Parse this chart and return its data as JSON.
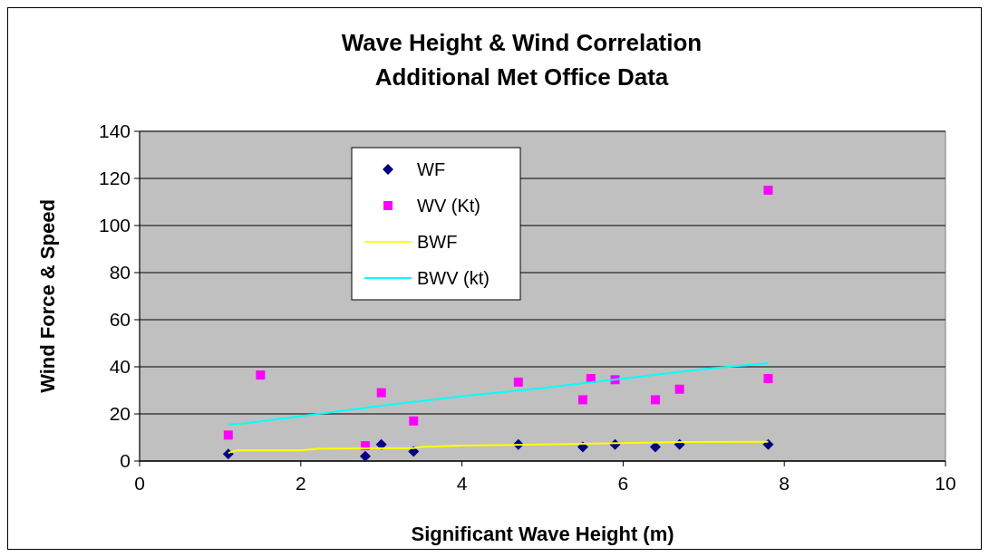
{
  "chart_data": {
    "type": "scatter",
    "title": "Wave Height & Wind Correlation",
    "subtitle": "Additional Met Office Data",
    "xlabel": "Significant Wave Height (m)",
    "ylabel": "Wind Force & Speed",
    "xlim": [
      0,
      10
    ],
    "xticks": [
      0,
      2,
      4,
      6,
      8,
      10
    ],
    "ylim": [
      0,
      140
    ],
    "yticks": [
      0,
      20,
      40,
      60,
      80,
      100,
      120,
      140
    ],
    "grid": "y",
    "legend": "top left",
    "series": [
      {
        "name": "WF",
        "color": "#000080",
        "marker": "diamond",
        "x": [
          1.1,
          2.8,
          3.0,
          3.4,
          4.7,
          5.5,
          5.9,
          6.4,
          6.7,
          7.8
        ],
        "values": [
          3,
          2,
          7,
          4,
          7,
          6,
          7,
          6,
          7,
          7
        ]
      },
      {
        "name": "WV (Kt)",
        "color": "#ff00ff",
        "marker": "square",
        "x": [
          1.1,
          1.5,
          2.8,
          3.0,
          3.4,
          4.7,
          5.5,
          5.6,
          5.9,
          6.4,
          6.7,
          7.8,
          7.8
        ],
        "values": [
          11,
          36.5,
          6.5,
          29,
          17,
          33.5,
          26,
          35,
          34.5,
          26,
          30.5,
          115,
          35
        ]
      },
      {
        "name": "BWF",
        "type": "line",
        "color": "#ffff00",
        "marker": "none",
        "x": [
          1.1,
          1.2,
          2.0,
          2.2,
          3.4,
          3.5,
          4.0,
          5.0,
          6.6,
          7.8
        ],
        "values": [
          3.4,
          4.5,
          4.5,
          5.2,
          5.5,
          6,
          6.5,
          7,
          8,
          8.2
        ]
      },
      {
        "name": "BWV (kt)",
        "type": "line",
        "color": "#00ffff",
        "marker": "none",
        "x": [
          1.1,
          1.3,
          2.0,
          3.0,
          4.0,
          5.0,
          6.0,
          7.0,
          7.8
        ],
        "values": [
          15.5,
          16,
          19,
          23.5,
          27.5,
          31,
          35,
          39,
          41.5
        ]
      }
    ]
  }
}
